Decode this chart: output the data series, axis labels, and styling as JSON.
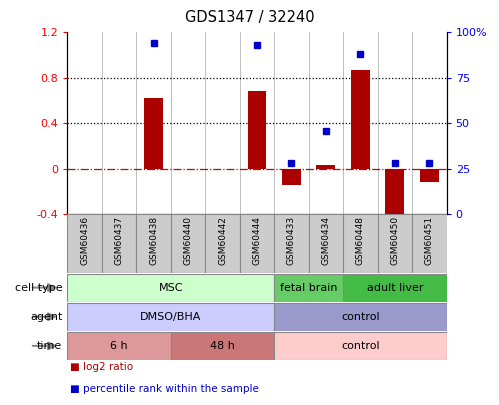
{
  "title": "GDS1347 / 32240",
  "samples": [
    "GSM60436",
    "GSM60437",
    "GSM60438",
    "GSM60440",
    "GSM60442",
    "GSM60444",
    "GSM60433",
    "GSM60434",
    "GSM60448",
    "GSM60450",
    "GSM60451"
  ],
  "log2_ratio": [
    0.0,
    0.0,
    0.62,
    0.0,
    0.0,
    0.68,
    -0.14,
    0.03,
    0.87,
    -0.52,
    -0.12
  ],
  "percentile_rank": [
    0.0,
    0.0,
    0.94,
    0.0,
    0.0,
    0.93,
    0.28,
    0.46,
    0.88,
    0.28,
    0.28
  ],
  "ylim_left": [
    -0.4,
    1.2
  ],
  "ylim_right": [
    0,
    100
  ],
  "yticks_left": [
    -0.4,
    0.0,
    0.4,
    0.8,
    1.2
  ],
  "yticks_right": [
    0,
    25,
    50,
    75,
    100
  ],
  "ytick_labels_left": [
    "-0.4",
    "0",
    "0.4",
    "0.8",
    "1.2"
  ],
  "ytick_labels_right": [
    "0",
    "25",
    "50",
    "75",
    "100%"
  ],
  "hlines": [
    0.4,
    0.8
  ],
  "bar_color": "#aa0000",
  "dot_color": "#0000cc",
  "zero_line_color": "#cc0000",
  "cell_type_row": {
    "label": "cell type",
    "groups": [
      {
        "text": "MSC",
        "start": 0,
        "end": 5,
        "color": "#ccffcc",
        "border": "#888888"
      },
      {
        "text": "fetal brain",
        "start": 6,
        "end": 7,
        "color": "#66cc66",
        "border": "#888888"
      },
      {
        "text": "adult liver",
        "start": 8,
        "end": 10,
        "color": "#44bb44",
        "border": "#888888"
      }
    ]
  },
  "agent_row": {
    "label": "agent",
    "groups": [
      {
        "text": "DMSO/BHA",
        "start": 0,
        "end": 5,
        "color": "#ccccff",
        "border": "#888888"
      },
      {
        "text": "control",
        "start": 6,
        "end": 10,
        "color": "#9999cc",
        "border": "#888888"
      }
    ]
  },
  "time_row": {
    "label": "time",
    "groups": [
      {
        "text": "6 h",
        "start": 0,
        "end": 2,
        "color": "#dd9999",
        "border": "#888888"
      },
      {
        "text": "48 h",
        "start": 3,
        "end": 5,
        "color": "#cc7777",
        "border": "#888888"
      },
      {
        "text": "control",
        "start": 6,
        "end": 10,
        "color": "#ffcccc",
        "border": "#888888"
      }
    ]
  },
  "legend_items": [
    {
      "color": "#aa0000",
      "label": "log2 ratio"
    },
    {
      "color": "#0000cc",
      "label": "percentile rank within the sample"
    }
  ],
  "sample_box_color": "#cccccc",
  "sample_box_edge": "#888888"
}
